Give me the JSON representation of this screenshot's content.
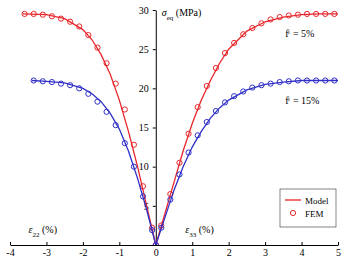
{
  "chart_data": {
    "type": "line",
    "xlabel_left": "ε22 (%)",
    "xlabel_right": "ε33 (%)",
    "ylabel": "σeq (MPa)",
    "annotations": [
      "fⁱ = 5%",
      "fⁱ = 15%"
    ],
    "xlim": [
      -4,
      5
    ],
    "xticks": [
      -4,
      -3,
      -2,
      -1,
      0,
      1,
      2,
      3,
      4,
      5
    ],
    "ylim": [
      0,
      30
    ],
    "yticks": [
      5,
      10,
      15,
      20,
      25,
      30
    ],
    "legend": "lower right",
    "series": [
      {
        "name": "Model",
        "type": "line",
        "line_style": "solid",
        "color": "#e8262b",
        "x": [
          -3.65,
          -3,
          -2.5,
          -2,
          -1.75,
          -1.5,
          -1.25,
          -1,
          -0.75,
          -0.5,
          -0.25,
          0,
          0.25,
          0.5,
          0.75,
          1,
          1.25,
          1.5,
          1.75,
          2,
          2.5,
          3,
          3.5,
          4,
          4.5,
          5
        ],
        "values": [
          29.5,
          29.4,
          28.9,
          27.5,
          26.2,
          24.3,
          21.8,
          18.5,
          14.5,
          10,
          5,
          0,
          4,
          8,
          12,
          15.5,
          18.5,
          21,
          23.2,
          25,
          27.3,
          28.5,
          29.1,
          29.4,
          29.5,
          29.5
        ]
      },
      {
        "name": "FEM",
        "type": "scatter",
        "marker": "circle",
        "color": "#e8262b",
        "x": [
          -3.6,
          -3.35,
          -3.1,
          -2.85,
          -2.6,
          -2.35,
          -2.1,
          -1.85,
          -1.6,
          -1.35,
          -1.1,
          -0.85,
          -0.6,
          -0.35,
          -0.1,
          0,
          0.15,
          0.4,
          0.65,
          0.9,
          1.15,
          1.4,
          1.65,
          1.9,
          2.15,
          2.4,
          2.65,
          2.9,
          3.15,
          3.4,
          3.65,
          3.9,
          4.15,
          4.4,
          4.65,
          4.9
        ],
        "values": [
          29.5,
          29.5,
          29.4,
          29.2,
          28.9,
          28.5,
          27.9,
          26.8,
          25.2,
          23.2,
          20.6,
          17.3,
          12.8,
          7.5,
          2.2,
          0,
          2.5,
          6.5,
          10.5,
          14.2,
          17.6,
          20.3,
          22.6,
          24.5,
          25.8,
          26.9,
          27.7,
          28.3,
          28.8,
          29.1,
          29.3,
          29.4,
          29.5,
          29.5,
          29.5,
          29.5
        ]
      },
      {
        "type": "line",
        "line_style": "solid",
        "color": "#3030c8",
        "x": [
          -3.4,
          -3,
          -2.5,
          -2,
          -1.75,
          -1.5,
          -1.25,
          -1,
          -0.75,
          -0.5,
          -0.25,
          0,
          0.25,
          0.5,
          0.75,
          1,
          1.25,
          1.5,
          1.75,
          2,
          2.5,
          3,
          3.5,
          4,
          5
        ],
        "values": [
          21,
          20.9,
          20.7,
          20,
          19.3,
          18.3,
          16.8,
          14.8,
          12,
          8.5,
          4.5,
          0,
          3.5,
          7,
          10,
          12.5,
          14.5,
          16.2,
          17.5,
          18.5,
          19.8,
          20.5,
          20.8,
          21,
          21
        ]
      },
      {
        "type": "scatter",
        "marker": "circle",
        "color": "#3030c8",
        "x": [
          -3.35,
          -3.1,
          -2.85,
          -2.6,
          -2.35,
          -2.1,
          -1.85,
          -1.6,
          -1.35,
          -1.1,
          -0.85,
          -0.6,
          -0.35,
          -0.1,
          0,
          0.15,
          0.4,
          0.65,
          0.9,
          1.15,
          1.4,
          1.65,
          1.9,
          2.15,
          2.4,
          2.65,
          2.9,
          3.15,
          3.4,
          3.65,
          3.9,
          4.15,
          4.4,
          4.65,
          4.9
        ],
        "values": [
          21,
          20.9,
          20.8,
          20.6,
          20.4,
          20,
          19.3,
          18.3,
          17,
          15.3,
          13,
          10,
          6.2,
          1.9,
          0,
          2.2,
          5.8,
          9,
          11.8,
          14,
          15.7,
          17.1,
          18.2,
          19,
          19.6,
          20.1,
          20.4,
          20.6,
          20.8,
          20.9,
          21,
          21,
          21,
          21,
          21
        ]
      }
    ]
  }
}
